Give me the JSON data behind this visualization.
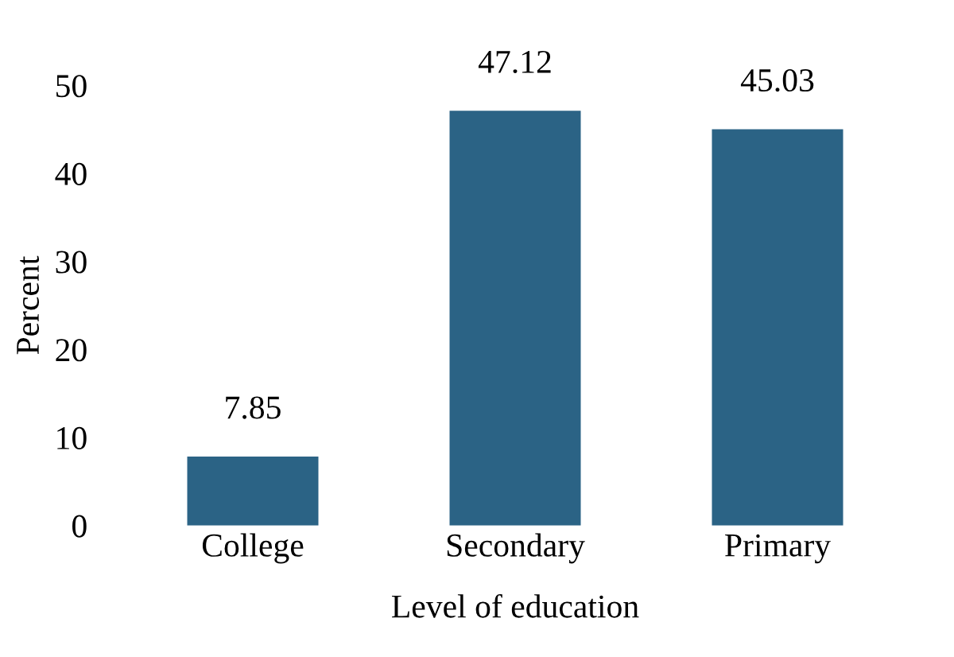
{
  "chart_data": {
    "type": "bar",
    "xlabel": "Level of education",
    "ylabel": "Percent",
    "categories": [
      "College",
      "Secondary",
      "Primary"
    ],
    "values": [
      7.85,
      47.12,
      45.03
    ],
    "color": "#2b6385",
    "ylim": [
      0,
      50
    ],
    "yticks": [
      0,
      10,
      20,
      30,
      40,
      50
    ],
    "grid": false,
    "data_labels": true
  }
}
